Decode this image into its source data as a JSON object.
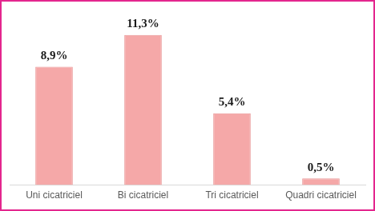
{
  "chart_data": {
    "type": "bar",
    "categories": [
      "Uni cicatriciel",
      "Bi cicatriciel",
      "Tri cicatriciel",
      "Quadri cicatriciel"
    ],
    "values": [
      8.9,
      11.3,
      5.4,
      0.5
    ],
    "value_labels": [
      "8,9%",
      "11,3%",
      "5,4%",
      "0,5%"
    ],
    "color": "#f5a8a8",
    "grid": false,
    "data_labels": true,
    "tick_labels": "x"
  }
}
